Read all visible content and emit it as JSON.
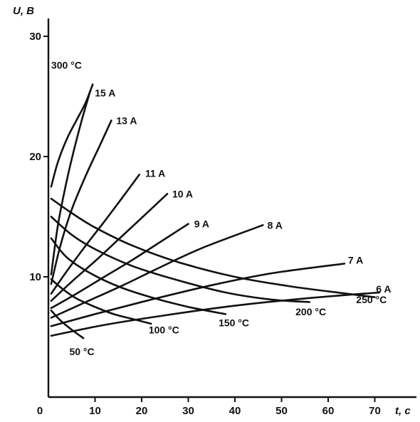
{
  "chart_data": {
    "type": "line",
    "xlabel": "t, c",
    "ylabel": "U, B",
    "xlim": [
      0,
      70
    ],
    "ylim": [
      0,
      30
    ],
    "x_ticks": [
      "0",
      "10",
      "20",
      "30",
      "40",
      "50",
      "60",
      "70"
    ],
    "y_ticks": [
      "10",
      "20",
      "30"
    ],
    "grid": false,
    "current_curves": [
      {
        "name": "15 A",
        "points": [
          [
            0.6,
            10.2
          ],
          [
            2,
            14.2
          ],
          [
            3.5,
            17.2
          ],
          [
            5,
            19.8
          ],
          [
            7,
            22.8
          ],
          [
            9,
            25.5
          ]
        ]
      },
      {
        "name": "13 A",
        "points": [
          [
            0.6,
            9.4
          ],
          [
            2.5,
            12.5
          ],
          [
            5,
            15.6
          ],
          [
            8,
            18.4
          ],
          [
            11,
            20.9
          ],
          [
            13.5,
            23.0
          ]
        ]
      },
      {
        "name": "11 A",
        "points": [
          [
            0.6,
            8.6
          ],
          [
            4,
            10.5
          ],
          [
            8,
            12.6
          ],
          [
            12,
            14.6
          ],
          [
            15.5,
            16.4
          ],
          [
            19.5,
            18.5
          ]
        ]
      },
      {
        "name": "10 A",
        "points": [
          [
            0.6,
            8.0
          ],
          [
            5,
            9.6
          ],
          [
            10,
            11.3
          ],
          [
            15,
            13.1
          ],
          [
            20,
            14.9
          ],
          [
            25.5,
            16.9
          ]
        ]
      },
      {
        "name": "9 A",
        "points": [
          [
            0.6,
            7.4
          ],
          [
            6,
            8.6
          ],
          [
            12,
            10.0
          ],
          [
            18,
            11.4
          ],
          [
            24,
            12.9
          ],
          [
            30,
            14.4
          ]
        ]
      },
      {
        "name": "8 A",
        "points": [
          [
            0.6,
            6.6
          ],
          [
            8,
            7.9
          ],
          [
            16,
            9.3
          ],
          [
            24,
            10.8
          ],
          [
            33,
            12.4
          ],
          [
            46,
            14.3
          ]
        ]
      },
      {
        "name": "7 A",
        "points": [
          [
            0.6,
            5.9
          ],
          [
            10,
            6.9
          ],
          [
            22,
            8.1
          ],
          [
            35,
            9.3
          ],
          [
            48,
            10.3
          ],
          [
            63.5,
            11.1
          ]
        ]
      },
      {
        "name": "6 A",
        "points": [
          [
            0.6,
            5.1
          ],
          [
            12,
            6.0
          ],
          [
            25,
            6.8
          ],
          [
            40,
            7.6
          ],
          [
            55,
            8.2
          ],
          [
            71,
            8.7
          ]
        ]
      }
    ],
    "temperature_curves": [
      {
        "name": "50 °C",
        "points": [
          [
            0.6,
            7.2
          ],
          [
            2.5,
            6.4
          ],
          [
            5,
            5.6
          ],
          [
            7.5,
            4.9
          ]
        ]
      },
      {
        "name": "100 °C",
        "points": [
          [
            0.6,
            9.8
          ],
          [
            3,
            9.0
          ],
          [
            6,
            8.2
          ],
          [
            10,
            7.5
          ],
          [
            14,
            6.9
          ],
          [
            18,
            6.5
          ],
          [
            22,
            6.1
          ]
        ]
      },
      {
        "name": "150 °C",
        "points": [
          [
            0.6,
            13.2
          ],
          [
            4,
            11.6
          ],
          [
            9,
            10.3
          ],
          [
            15,
            9.2
          ],
          [
            22,
            8.3
          ],
          [
            30,
            7.5
          ],
          [
            38,
            6.9
          ]
        ]
      },
      {
        "name": "200 °C",
        "points": [
          [
            0.6,
            15.0
          ],
          [
            5,
            13.5
          ],
          [
            10,
            12.3
          ],
          [
            18,
            10.9
          ],
          [
            27,
            9.8
          ],
          [
            38,
            8.7
          ],
          [
            48,
            8.1
          ],
          [
            56,
            7.9
          ]
        ]
      },
      {
        "name": "250 °C",
        "points": [
          [
            0.6,
            16.5
          ],
          [
            5,
            15.3
          ],
          [
            10,
            14.1
          ],
          [
            18,
            12.6
          ],
          [
            28,
            11.2
          ],
          [
            40,
            10.0
          ],
          [
            52,
            9.2
          ],
          [
            64,
            8.6
          ],
          [
            70,
            8.3
          ]
        ]
      },
      {
        "name": "300 °C",
        "points": [
          [
            0.6,
            17.5
          ],
          [
            2,
            19.5
          ],
          [
            4,
            21.5
          ],
          [
            6,
            23.0
          ],
          [
            8,
            24.5
          ],
          [
            9.5,
            26.0
          ]
        ]
      }
    ],
    "current_labels": [
      {
        "text": "15 A",
        "x": 9.2,
        "y": 25.3
      },
      {
        "text": "13 A",
        "x": 13.8,
        "y": 23.0
      },
      {
        "text": "11 A",
        "x": 20.0,
        "y": 18.6
      },
      {
        "text": "10 A",
        "x": 25.8,
        "y": 16.9
      },
      {
        "text": "9 A",
        "x": 30.5,
        "y": 14.4
      },
      {
        "text": "8 A",
        "x": 46.2,
        "y": 14.3
      },
      {
        "text": "7 A",
        "x": 63.5,
        "y": 11.4
      },
      {
        "text": "6 A",
        "x": 69.5,
        "y": 9.0
      }
    ],
    "temperature_labels": [
      {
        "text": "300 °C",
        "x": 0.6,
        "y": 27.3
      },
      {
        "text": "50 °C",
        "x": 4.5,
        "y": 3.5
      },
      {
        "text": "100 °C",
        "x": 21.5,
        "y": 5.3
      },
      {
        "text": "150 °C",
        "x": 36.5,
        "y": 5.9
      },
      {
        "text": "200 °C",
        "x": 53.0,
        "y": 6.8
      },
      {
        "text": "250 °C",
        "x": 66.0,
        "y": 7.8
      }
    ]
  }
}
